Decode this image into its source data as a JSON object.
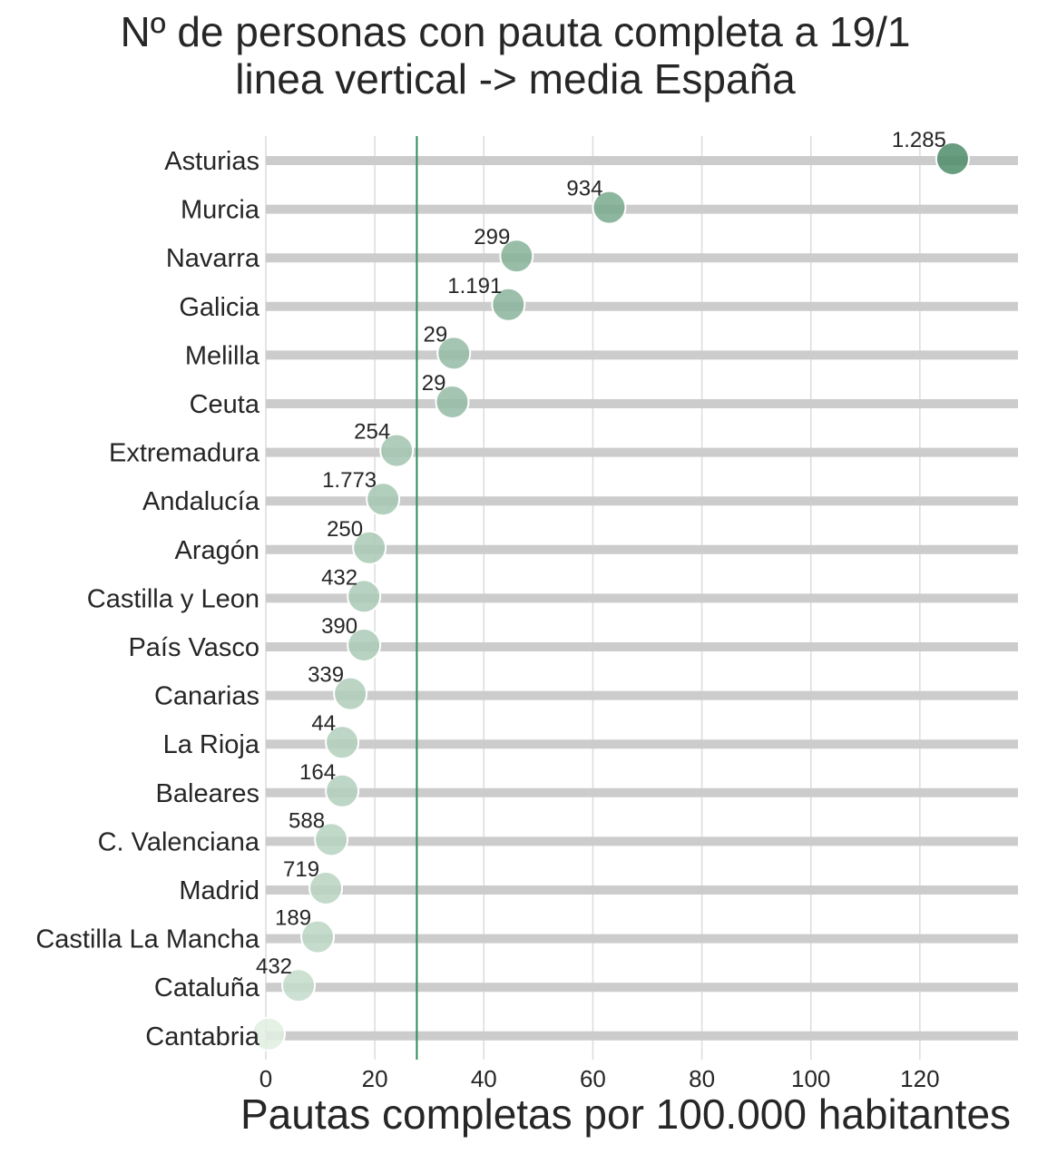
{
  "chart_data": {
    "type": "scatter",
    "title": "Nº de personas con pauta completa a 19/1",
    "subtitle": "linea vertical -> media España",
    "xlabel": "Pautas completas por 100.000 habitantes",
    "ylabel": "",
    "xlim": [
      0,
      138
    ],
    "xticks": [
      0,
      20,
      40,
      60,
      80,
      100,
      120
    ],
    "grid": true,
    "reference_line": {
      "x": 27.7,
      "color": "#2e8b57"
    },
    "categories": [
      "Asturias",
      "Murcia",
      "Navarra",
      "Galicia",
      "Melilla",
      "Ceuta",
      "Extremadura",
      "Andalucía",
      "Aragón",
      "Castilla y Leon",
      "País Vasco",
      "Canarias",
      "La Rioja",
      "Baleares",
      "C. Valenciana",
      "Madrid",
      "Castilla La Mancha",
      "Cataluña",
      "Cantabria"
    ],
    "x": [
      126.0,
      63.0,
      46.0,
      44.5,
      34.5,
      34.2,
      24.0,
      21.5,
      19.0,
      18.0,
      18.0,
      15.5,
      14.0,
      14.0,
      12.0,
      11.0,
      9.5,
      6.0,
      0.5
    ],
    "value_labels": [
      "1.285",
      "934",
      "299",
      "1.191",
      "29",
      "29",
      "254",
      "1.773",
      "250",
      "432",
      "390",
      "339",
      "44",
      "164",
      "588",
      "719",
      "189",
      "432",
      ""
    ],
    "colors": {
      "high": "#4d8c6a",
      "low": "#edf7ec",
      "stem": "#cccccc",
      "grid": "#dcdcdc"
    }
  }
}
